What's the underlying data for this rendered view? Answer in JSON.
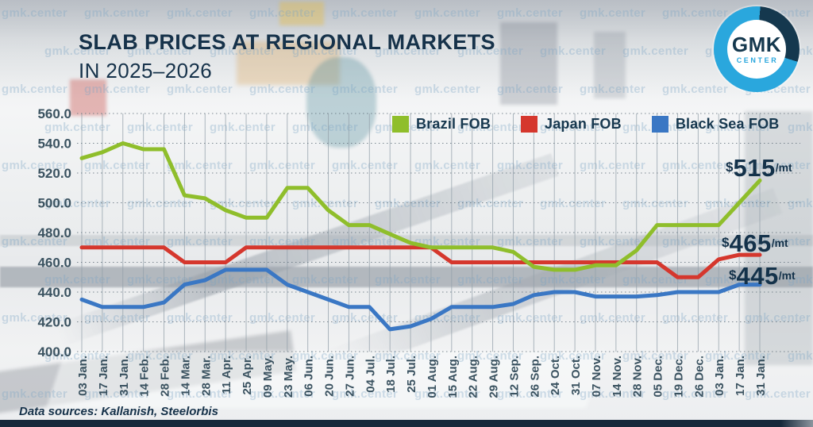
{
  "header": {
    "title_line1": "SLAB PRICES AT REGIONAL MARKETS",
    "title_line2": "IN 2025–2026"
  },
  "logo": {
    "name": "GMK",
    "subname": "CENTER"
  },
  "watermark": {
    "text": "gmk.center"
  },
  "footer": {
    "sources": "Data sources: Kallanish, Steelorbis"
  },
  "annotations": [
    {
      "prefix": "$",
      "value": "515",
      "suffix": "/mt"
    },
    {
      "prefix": "$",
      "value": "465",
      "suffix": "/mt"
    },
    {
      "prefix": "$",
      "value": "445",
      "suffix": "/mt"
    }
  ],
  "chart_data": {
    "type": "line",
    "title": "SLAB PRICES AT REGIONAL MARKETS IN 2025–2026",
    "unit": "$/mt",
    "ylim": [
      400,
      560
    ],
    "ytick_step": 20,
    "y_ticks": [
      "560.0",
      "540.0",
      "520.0",
      "500.0",
      "480.0",
      "460.0",
      "440.0",
      "420.0",
      "400.0"
    ],
    "grid": true,
    "legend_position": "top",
    "x_labels": [
      "03 Jan.",
      "17 Jan.",
      "31 Jan.",
      "14 Feb.",
      "28 Feb.",
      "14 Mar.",
      "28 Mar.",
      "11 Apr.",
      "25 Apr.",
      "09 May.",
      "23 May.",
      "06 Jun.",
      "20 Jun.",
      "27 Jun.",
      "04 Jul.",
      "18 Jul.",
      "25 Jul.",
      "01 Aug.",
      "15 Aug.",
      "22 Aug.",
      "29 Aug.",
      "12 Sep.",
      "26 Sep.",
      "24 Oct.",
      "31 Oct.",
      "07 Nov.",
      "14 Nov.",
      "28 Nov.",
      "05 Dec.",
      "19 Dec.",
      "26 Dec.",
      "03 Jan.",
      "17 Jan.",
      "31 Jan."
    ],
    "series": [
      {
        "name": "Brazil FOB",
        "color": "#8fbe2b",
        "values": [
          530,
          534,
          540,
          536,
          536,
          505,
          503,
          495,
          490,
          490,
          510,
          510,
          495,
          485,
          485,
          479,
          473,
          470,
          470,
          470,
          470,
          467,
          457,
          455,
          455,
          458,
          458,
          468,
          485,
          485,
          485,
          485,
          500,
          515
        ]
      },
      {
        "name": "Japan FOB",
        "color": "#d5372d",
        "values": [
          470,
          470,
          470,
          470,
          470,
          460,
          460,
          460,
          470,
          470,
          470,
          470,
          470,
          470,
          470,
          470,
          470,
          470,
          460,
          460,
          460,
          460,
          460,
          460,
          460,
          460,
          460,
          460,
          460,
          450,
          450,
          462,
          465,
          465
        ]
      },
      {
        "name": "Black Sea FOB",
        "color": "#3a77c4",
        "values": [
          435,
          430,
          430,
          430,
          433,
          445,
          448,
          455,
          455,
          455,
          445,
          440,
          435,
          430,
          430,
          415,
          417,
          422,
          430,
          430,
          430,
          432,
          438,
          440,
          440,
          437,
          437,
          437,
          438,
          440,
          440,
          440,
          445,
          445
        ]
      }
    ],
    "end_labels": [
      "$515/mt",
      "$465/mt",
      "$445/mt"
    ]
  }
}
